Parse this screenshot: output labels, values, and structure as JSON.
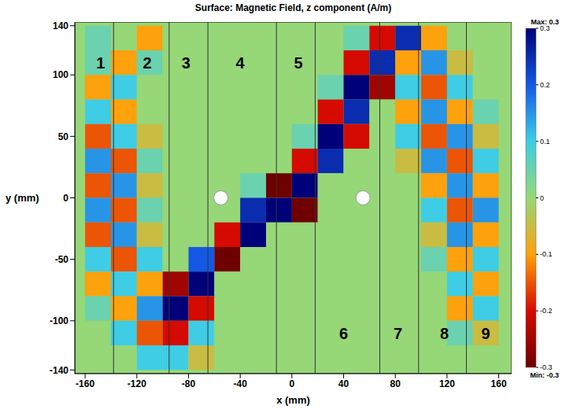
{
  "chart_data": {
    "type": "heatmap",
    "title": "Surface: Magnetic Field, z component (A/m)",
    "x_label": "x (mm)",
    "y_label": "y (mm)",
    "xlim": [
      -168,
      170
    ],
    "ylim": [
      -143,
      143
    ],
    "xticks": [
      -160,
      -120,
      -80,
      -40,
      0,
      40,
      80,
      120,
      160
    ],
    "yticks": [
      -140,
      -100,
      -50,
      0,
      50,
      100,
      140
    ],
    "x": [
      -150,
      -130,
      -110,
      -90,
      -70,
      -50,
      -30,
      -10,
      10,
      30,
      50,
      70,
      90,
      110,
      130,
      150
    ],
    "y": [
      130,
      110,
      90,
      70,
      50,
      30,
      10,
      -10,
      -30,
      -50,
      -70,
      -90,
      -110,
      -130
    ],
    "cells": [
      [
        0.05,
        0,
        -0.1,
        0,
        0,
        0,
        0,
        0,
        0,
        0,
        0.05,
        -0.2,
        0.25,
        -0.1,
        0,
        0
      ],
      [
        0.05,
        -0.1,
        0.05,
        0,
        0,
        0,
        0,
        0,
        0,
        0,
        -0.2,
        0.25,
        -0.1,
        0.15,
        -0.05,
        0
      ],
      [
        -0.1,
        0.1,
        0,
        0,
        0,
        0,
        0,
        0,
        0,
        0.05,
        0.3,
        -0.25,
        0.1,
        -0.15,
        0.1,
        0
      ],
      [
        0.1,
        -0.1,
        0,
        0,
        0,
        0,
        0,
        0,
        0,
        -0.2,
        0.25,
        0,
        -0.1,
        0.15,
        -0.1,
        0.05
      ],
      [
        -0.15,
        0.1,
        -0.05,
        0,
        0,
        0,
        0,
        0,
        0.05,
        0.3,
        -0.2,
        0,
        0.1,
        -0.15,
        0.15,
        -0.05
      ],
      [
        0.15,
        -0.15,
        0.05,
        0,
        0,
        0,
        0,
        0,
        -0.2,
        0.25,
        0,
        0,
        -0.05,
        0.15,
        -0.15,
        0.1
      ],
      [
        -0.15,
        0.15,
        -0.05,
        0,
        0,
        0,
        0.05,
        -0.3,
        0.3,
        0,
        0,
        0,
        0,
        -0.1,
        0.15,
        -0.1
      ],
      [
        0.15,
        -0.15,
        0.05,
        0,
        0,
        0,
        0.25,
        0.3,
        -0.3,
        0,
        0,
        0,
        0,
        0.1,
        -0.15,
        0.15
      ],
      [
        -0.15,
        0.15,
        -0.05,
        0,
        0,
        -0.2,
        0.3,
        0,
        0,
        0,
        0,
        0,
        0,
        -0.05,
        0.15,
        -0.1
      ],
      [
        0.1,
        -0.15,
        0.1,
        0,
        0.2,
        -0.3,
        0,
        0,
        0,
        0,
        0,
        0,
        0,
        0.05,
        -0.1,
        0.1
      ],
      [
        -0.1,
        0.1,
        -0.1,
        -0.25,
        0.3,
        0,
        0,
        0,
        0,
        0,
        0,
        0,
        0,
        0,
        0.1,
        -0.1
      ],
      [
        0.05,
        -0.1,
        0.15,
        0.3,
        -0.2,
        0,
        0,
        0,
        0,
        0,
        0,
        0,
        0,
        0,
        -0.1,
        0.1
      ],
      [
        0,
        0.1,
        -0.15,
        -0.2,
        0.1,
        0,
        0,
        0,
        0,
        0,
        0,
        0,
        0,
        0,
        0.05,
        -0.05
      ],
      [
        0,
        0,
        0.1,
        0.1,
        -0.05,
        0,
        0,
        0,
        0,
        0,
        0,
        0,
        0,
        0,
        0,
        0
      ]
    ],
    "colorbar": {
      "range": [
        -0.3,
        0.3
      ],
      "ticks": [
        0.3,
        0.2,
        0.1,
        0,
        -0.1,
        -0.2,
        -0.3
      ],
      "max_label": "Max: 0.3",
      "min_label": "Min: -0.3"
    },
    "region_boundaries": [
      -138,
      -95,
      -65,
      -12,
      18,
      68,
      98,
      135
    ],
    "region_labels": [
      {
        "label": "1",
        "x": -148,
        "y": 110
      },
      {
        "label": "2",
        "x": -112,
        "y": 110
      },
      {
        "label": "3",
        "x": -82,
        "y": 110
      },
      {
        "label": "4",
        "x": -40,
        "y": 110
      },
      {
        "label": "5",
        "x": 5,
        "y": 110
      },
      {
        "label": "6",
        "x": 40,
        "y": -110
      },
      {
        "label": "7",
        "x": 82,
        "y": -110
      },
      {
        "label": "8",
        "x": 118,
        "y": -110
      },
      {
        "label": "9",
        "x": 150,
        "y": -110
      }
    ],
    "holes": [
      {
        "x": -55,
        "y": 0
      },
      {
        "x": 55,
        "y": 0
      }
    ]
  }
}
